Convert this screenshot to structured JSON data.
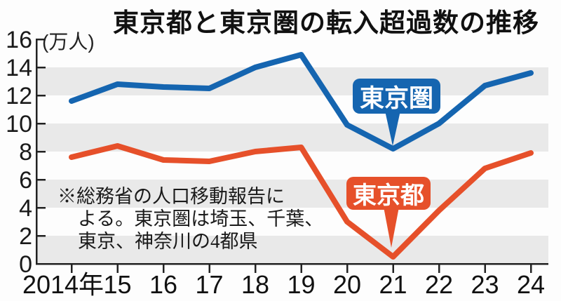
{
  "title": "東京都と東京圏の転入超過数の推移",
  "unit_label": "(万人)",
  "annotation": {
    "lines": [
      "※総務省の人口移動報告に",
      "よる。東京圏は埼玉、千葉、",
      "東京、神奈川の4都県"
    ]
  },
  "chart_data": {
    "type": "line",
    "title": "東京都と東京圏の転入超過数の推移",
    "ylabel": "(万人)",
    "x_labels": [
      "2014年",
      "15",
      "16",
      "17",
      "18",
      "19",
      "20",
      "21",
      "22",
      "23",
      "24"
    ],
    "years": [
      2014,
      2015,
      2016,
      2017,
      2018,
      2019,
      2020,
      2021,
      2022,
      2023,
      2024
    ],
    "series": [
      {
        "name": "東京圏",
        "color": "#1565b0",
        "values": [
          11.6,
          12.8,
          12.6,
          12.5,
          14.0,
          14.9,
          9.9,
          8.2,
          10.0,
          12.7,
          13.6
        ]
      },
      {
        "name": "東京都",
        "color": "#e6502a",
        "values": [
          7.6,
          8.4,
          7.4,
          7.3,
          8.0,
          8.3,
          3.0,
          0.5,
          3.8,
          6.8,
          7.9
        ]
      }
    ],
    "ylim": [
      0,
      16
    ],
    "y_tick_step": 2,
    "grid": "striped-horizontal-bands",
    "band_color": "#e9e9e9",
    "axis_color": "#222222",
    "legend": "callout-labels-on-lines"
  }
}
